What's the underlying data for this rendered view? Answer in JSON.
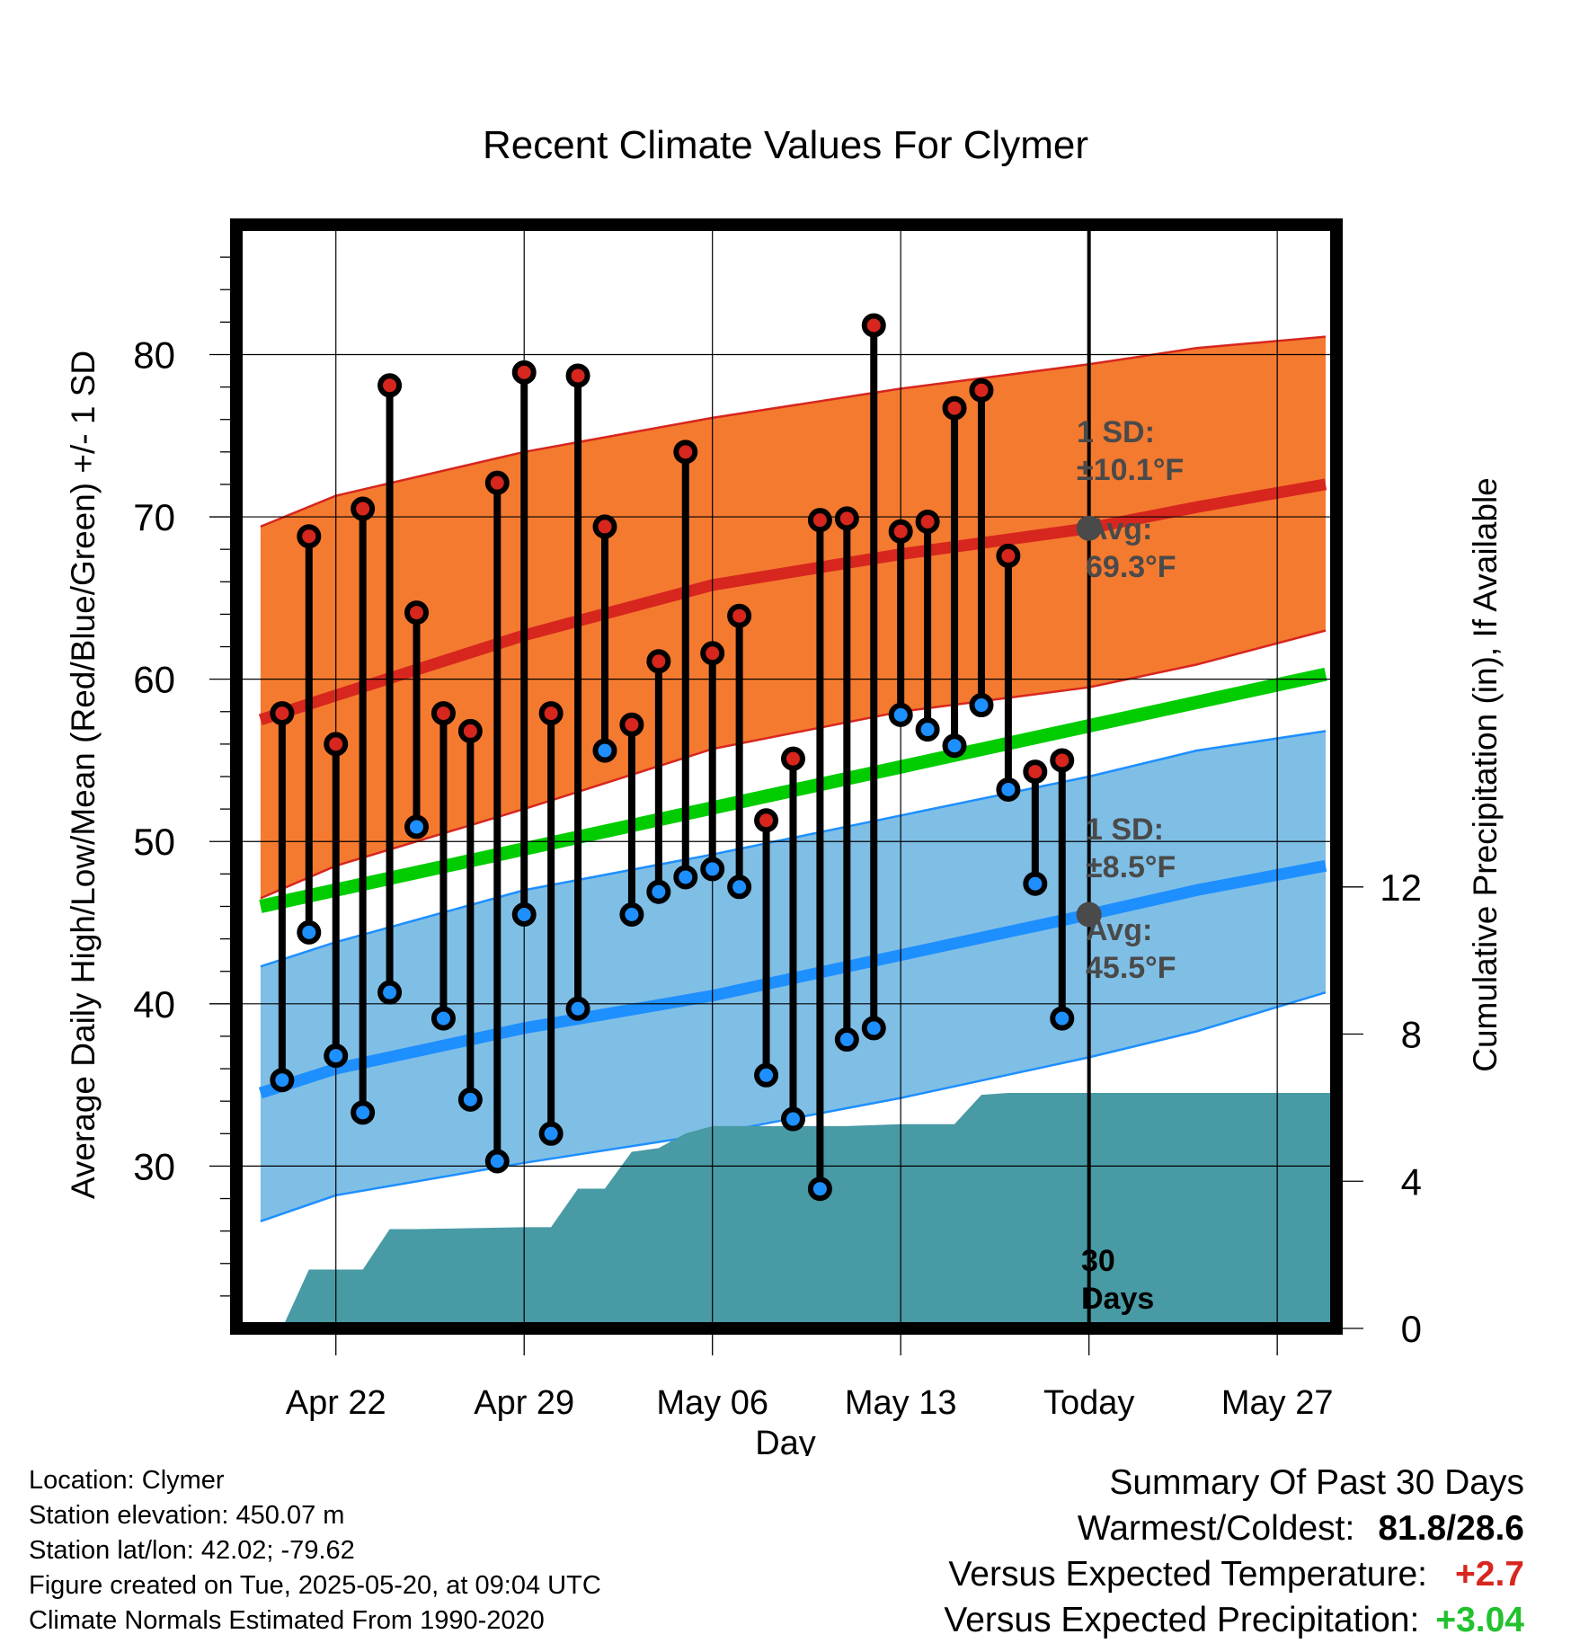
{
  "chart_data": {
    "type": "line",
    "title": "Recent Climate Values For Clymer",
    "xlabel": "Day",
    "ylabel": "Average Daily High/Low/Mean (Red/Blue/Green) +/- 1 SD",
    "y2label": "Cumulative Precipitation (in), If Available",
    "ylim": [
      20,
      88
    ],
    "y2lim": [
      0,
      30
    ],
    "yticks": [
      30,
      40,
      50,
      60,
      70,
      80
    ],
    "y2ticks": [
      0,
      4,
      8,
      12
    ],
    "xlim": [
      -3.7,
      37.2
    ],
    "xticks": [
      {
        "x": 0,
        "label": "Apr 22"
      },
      {
        "x": 7,
        "label": "Apr 29"
      },
      {
        "x": 14,
        "label": "May 06"
      },
      {
        "x": 21,
        "label": "May 13"
      },
      {
        "x": 28,
        "label": "Today"
      },
      {
        "x": 35,
        "label": "May 27"
      }
    ],
    "today_x": 28,
    "today_label": [
      "30",
      "Days"
    ],
    "days": [
      -2,
      -1,
      0,
      1,
      2,
      3,
      4,
      5,
      6,
      7,
      8,
      9,
      10,
      11,
      12,
      13,
      14,
      15,
      16,
      17,
      18,
      19,
      20,
      21,
      22,
      23,
      24,
      25,
      26,
      27
    ],
    "daily_high": [
      57.9,
      68.8,
      56.0,
      70.5,
      78.1,
      64.1,
      57.9,
      56.8,
      72.1,
      78.9,
      57.9,
      78.7,
      69.4,
      57.2,
      61.1,
      74.0,
      61.6,
      63.9,
      51.3,
      55.1,
      69.8,
      69.9,
      81.8,
      69.1,
      69.7,
      76.7,
      77.8,
      67.6,
      54.3,
      55.0
    ],
    "daily_low": [
      35.3,
      44.4,
      36.8,
      33.3,
      40.7,
      50.9,
      39.1,
      34.1,
      30.3,
      45.5,
      32.0,
      39.7,
      55.6,
      45.5,
      46.9,
      47.8,
      48.3,
      47.2,
      35.6,
      32.9,
      28.6,
      37.8,
      38.5,
      57.8,
      56.9,
      55.9,
      58.4,
      53.2,
      47.4,
      39.1
    ],
    "normal_high": {
      "x": [
        -2.8,
        0,
        7,
        14,
        21,
        28,
        32,
        36.8
      ],
      "avg": [
        57.5,
        59.0,
        62.7,
        65.8,
        67.7,
        69.3,
        70.6,
        72.0
      ],
      "upper": [
        69.4,
        71.3,
        74.0,
        76.1,
        77.9,
        79.4,
        80.4,
        81.1
      ],
      "lower": [
        46.5,
        48.5,
        52.0,
        55.7,
        58.0,
        59.5,
        60.9,
        63.0
      ]
    },
    "normal_mean": {
      "x": [
        -2.8,
        36.8
      ],
      "values": [
        46.0,
        60.3
      ]
    },
    "normal_low": {
      "x": [
        -2.8,
        0,
        7,
        14,
        21,
        28,
        32,
        36.8
      ],
      "avg": [
        34.5,
        36.0,
        38.5,
        40.5,
        43.0,
        45.5,
        47.0,
        48.5
      ],
      "upper": [
        42.3,
        43.8,
        47.0,
        49.2,
        51.6,
        54.0,
        55.6,
        56.8
      ],
      "lower": [
        26.6,
        28.2,
        30.2,
        32.0,
        34.2,
        36.7,
        38.3,
        40.7
      ]
    },
    "cumulative_precip": {
      "x": [
        -2,
        -1,
        1,
        2,
        3,
        7,
        8,
        9,
        10,
        11,
        12,
        13,
        14,
        15,
        19,
        21,
        22,
        23,
        24,
        25,
        26,
        37.2
      ],
      "values": [
        0.0,
        1.6,
        1.6,
        2.7,
        2.7,
        2.75,
        2.75,
        3.8,
        3.8,
        4.8,
        4.9,
        5.3,
        5.5,
        5.5,
        5.5,
        5.55,
        5.55,
        5.55,
        6.35,
        6.4,
        6.4,
        6.4
      ]
    },
    "annotations": {
      "high_sd_label": [
        "1 SD:",
        "±10.1°F"
      ],
      "high_avg_label": [
        "Avg:",
        "69.3°F"
      ],
      "low_sd_label": [
        "1 SD:",
        "±8.5°F"
      ],
      "low_avg_label": [
        "Avg:",
        "45.5°F"
      ],
      "high_avg_marker": 69.3,
      "low_avg_marker": 45.5
    },
    "colors": {
      "high_band": "#f47a30",
      "high_line": "#d7261e",
      "mean_line": "#00cc00",
      "low_band": "#7fbfe6",
      "low_line": "#1e8fff",
      "precip_fill": "#489aa4",
      "high_dot": "#d7261e",
      "low_dot": "#1e8fff",
      "annotation_text": "#4a4a4a"
    }
  },
  "footer": {
    "location": "Location: Clymer",
    "elevation": "Station elevation: 450.07 m",
    "latlon": "Station lat/lon: 42.02; -79.62",
    "created": "Figure created on Tue, 2025-05-20, at 09:04 UTC",
    "normals": "Climate Normals Estimated From 1990-2020"
  },
  "summary": {
    "heading": "Summary Of Past 30 Days",
    "warmest_label": "Warmest/Coldest:",
    "warmest_value": "81.8/28.6",
    "temp_label": "Versus Expected Temperature:",
    "temp_value": "+2.7",
    "temp_color": "#d7261e",
    "precip_label": "Versus Expected Precipitation:",
    "precip_value": "+3.04",
    "precip_color": "#22c22e"
  }
}
